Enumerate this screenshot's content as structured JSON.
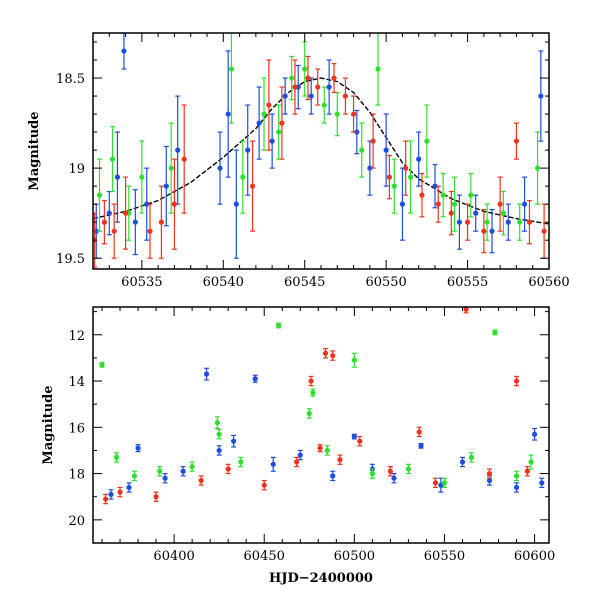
{
  "chart_data": [
    {
      "type": "scatter",
      "panel": "top",
      "title": "",
      "xlabel": "",
      "ylabel": "Magnitude",
      "xlim": [
        60532,
        60560
      ],
      "ylim": [
        19.56,
        18.25
      ],
      "y_inverted": true,
      "grid": false,
      "legend": "none",
      "xticks": [
        "60535",
        "60540",
        "60545",
        "60550",
        "60555",
        "60560"
      ],
      "yticks": [
        "18.5",
        "19",
        "19.5"
      ],
      "model_curve": {
        "color": "#000000",
        "x": [
          60532,
          60534,
          60536,
          60538,
          60540,
          60542,
          60543,
          60544,
          60545,
          60546,
          60547,
          60548,
          60549,
          60550,
          60551,
          60552,
          60554,
          60556,
          60558,
          60560
        ],
        "y": [
          19.28,
          19.24,
          19.18,
          19.08,
          18.94,
          18.78,
          18.67,
          18.58,
          18.52,
          18.5,
          18.52,
          18.58,
          18.69,
          18.83,
          18.97,
          19.06,
          19.17,
          19.24,
          19.28,
          19.31
        ]
      },
      "series": [
        {
          "color": "#1c4fe0",
          "points": [
            [
              60532.2,
              19.35,
              0.15
            ],
            [
              60533.0,
              19.25,
              0.12
            ],
            [
              60533.5,
              19.05,
              0.25
            ],
            [
              60533.9,
              18.35,
              0.1
            ],
            [
              60534.6,
              19.3,
              0.18
            ],
            [
              60535.3,
              19.2,
              0.2
            ],
            [
              60536.5,
              19.1,
              0.22
            ],
            [
              60537.2,
              18.9,
              0.3
            ],
            [
              60539.8,
              19.0,
              0.2
            ],
            [
              60540.3,
              18.7,
              0.35
            ],
            [
              60540.8,
              19.2,
              0.3
            ],
            [
              60541.5,
              18.9,
              0.25
            ],
            [
              60542.2,
              18.75,
              0.2
            ],
            [
              60543.0,
              18.85,
              0.15
            ],
            [
              60543.8,
              18.6,
              0.1
            ],
            [
              60544.6,
              18.55,
              0.12
            ],
            [
              60545.4,
              18.6,
              0.1
            ],
            [
              60546.5,
              18.55,
              0.15
            ],
            [
              60548.2,
              18.8,
              0.12
            ],
            [
              60549.0,
              19.0,
              0.15
            ],
            [
              60550.0,
              18.9,
              0.2
            ],
            [
              60551.0,
              19.2,
              0.2
            ],
            [
              60552.0,
              18.95,
              0.15
            ],
            [
              60553.0,
              19.1,
              0.12
            ],
            [
              60554.5,
              19.3,
              0.15
            ],
            [
              60555.5,
              19.25,
              0.1
            ],
            [
              60556.5,
              19.35,
              0.12
            ],
            [
              60557.5,
              19.3,
              0.1
            ],
            [
              60558.5,
              19.2,
              0.15
            ],
            [
              60559.5,
              18.6,
              0.25
            ]
          ]
        },
        {
          "color": "#2ee02e",
          "points": [
            [
              60532.4,
              19.15,
              0.2
            ],
            [
              60533.2,
              18.95,
              0.18
            ],
            [
              60534.2,
              19.25,
              0.15
            ],
            [
              60535.0,
              19.05,
              0.2
            ],
            [
              60536.8,
              19.0,
              0.25
            ],
            [
              60540.5,
              18.45,
              0.3
            ],
            [
              60541.2,
              19.05,
              0.2
            ],
            [
              60542.5,
              18.7,
              0.2
            ],
            [
              60543.4,
              18.8,
              0.15
            ],
            [
              60544.2,
              18.5,
              0.12
            ],
            [
              60545.0,
              18.45,
              0.15
            ],
            [
              60546.2,
              18.65,
              0.1
            ],
            [
              60547.0,
              18.7,
              0.12
            ],
            [
              60548.5,
              18.9,
              0.15
            ],
            [
              60549.5,
              18.45,
              0.2
            ],
            [
              60550.5,
              19.1,
              0.15
            ],
            [
              60551.5,
              19.05,
              0.2
            ],
            [
              60552.5,
              18.85,
              0.2
            ],
            [
              60553.5,
              19.15,
              0.12
            ],
            [
              60554.2,
              19.2,
              0.15
            ],
            [
              60555.2,
              19.15,
              0.12
            ],
            [
              60556.2,
              19.3,
              0.1
            ],
            [
              60557.2,
              19.25,
              0.12
            ],
            [
              60558.2,
              19.3,
              0.1
            ],
            [
              60559.3,
              19.0,
              0.2
            ]
          ]
        },
        {
          "color": "#f0331c",
          "points": [
            [
              60532.1,
              19.4,
              0.15
            ],
            [
              60532.7,
              19.3,
              0.12
            ],
            [
              60533.3,
              19.35,
              0.15
            ],
            [
              60534.0,
              19.25,
              0.2
            ],
            [
              60535.5,
              19.35,
              0.15
            ],
            [
              60536.2,
              19.3,
              0.2
            ],
            [
              60537.0,
              19.2,
              0.25
            ],
            [
              60537.6,
              18.95,
              0.3
            ],
            [
              60541.8,
              19.1,
              0.25
            ],
            [
              60542.8,
              18.65,
              0.25
            ],
            [
              60543.6,
              18.75,
              0.2
            ],
            [
              60544.4,
              18.55,
              0.15
            ],
            [
              60545.2,
              18.5,
              0.12
            ],
            [
              60545.8,
              18.55,
              0.1
            ],
            [
              60546.8,
              18.5,
              0.08
            ],
            [
              60547.5,
              18.6,
              0.1
            ],
            [
              60548.0,
              18.7,
              0.1
            ],
            [
              60549.2,
              18.85,
              0.15
            ],
            [
              60550.2,
              19.05,
              0.12
            ],
            [
              60551.2,
              19.0,
              0.15
            ],
            [
              60552.2,
              19.15,
              0.12
            ],
            [
              60553.2,
              19.2,
              0.1
            ],
            [
              60554.0,
              19.25,
              0.12
            ],
            [
              60555.0,
              19.3,
              0.1
            ],
            [
              60556.0,
              19.35,
              0.12
            ],
            [
              60557.0,
              19.2,
              0.15
            ],
            [
              60558.0,
              18.85,
              0.1
            ],
            [
              60558.8,
              19.3,
              0.12
            ],
            [
              60559.7,
              19.35,
              0.15
            ]
          ]
        }
      ]
    },
    {
      "type": "scatter",
      "panel": "bottom",
      "title": "",
      "xlabel": "HJD−2400000",
      "ylabel": "Magnitude",
      "xlim": [
        60355,
        60608
      ],
      "ylim": [
        21.0,
        10.8
      ],
      "y_inverted": true,
      "grid": false,
      "legend": "none",
      "xticks": [
        "60400",
        "60450",
        "60500",
        "60550",
        "60600"
      ],
      "yticks": [
        "12",
        "14",
        "16",
        "18",
        "20"
      ],
      "series": [
        {
          "color": "#1c4fe0",
          "points": [
            [
              60365,
              18.9,
              0.2
            ],
            [
              60375,
              18.6,
              0.2
            ],
            [
              60380,
              16.9,
              0.15
            ],
            [
              60395,
              18.2,
              0.2
            ],
            [
              60405,
              17.9,
              0.2
            ],
            [
              60418,
              13.7,
              0.25
            ],
            [
              60425,
              17.0,
              0.2
            ],
            [
              60433,
              16.6,
              0.25
            ],
            [
              60445,
              13.9,
              0.15
            ],
            [
              60455,
              17.6,
              0.3
            ],
            [
              60470,
              17.2,
              0.2
            ],
            [
              60488,
              18.1,
              0.2
            ],
            [
              60500,
              16.4,
              0.1
            ],
            [
              60510,
              17.8,
              0.2
            ],
            [
              60522,
              18.2,
              0.2
            ],
            [
              60537,
              16.8,
              0.1
            ],
            [
              60548,
              18.5,
              0.3
            ],
            [
              60560,
              17.5,
              0.2
            ],
            [
              60575,
              18.3,
              0.2
            ],
            [
              60590,
              18.6,
              0.2
            ],
            [
              60600,
              16.3,
              0.25
            ],
            [
              60604,
              18.4,
              0.2
            ]
          ]
        },
        {
          "color": "#2ee02e",
          "points": [
            [
              60360,
              13.3,
              0.1
            ],
            [
              60368,
              17.3,
              0.2
            ],
            [
              60378,
              18.1,
              0.2
            ],
            [
              60392,
              17.9,
              0.2
            ],
            [
              60410,
              17.7,
              0.2
            ],
            [
              60424,
              15.8,
              0.25
            ],
            [
              60425,
              16.3,
              0.2
            ],
            [
              60437,
              17.5,
              0.2
            ],
            [
              60458,
              11.6,
              0.1
            ],
            [
              60475,
              15.4,
              0.2
            ],
            [
              60477,
              14.5,
              0.15
            ],
            [
              60485,
              17.0,
              0.2
            ],
            [
              60500,
              13.1,
              0.3
            ],
            [
              60510,
              18.0,
              0.2
            ],
            [
              60530,
              17.8,
              0.2
            ],
            [
              60550,
              18.4,
              0.2
            ],
            [
              60565,
              17.3,
              0.2
            ],
            [
              60578,
              11.9,
              0.1
            ],
            [
              60590,
              18.1,
              0.2
            ],
            [
              60598,
              17.5,
              0.3
            ]
          ]
        },
        {
          "color": "#f0331c",
          "points": [
            [
              60362,
              19.1,
              0.2
            ],
            [
              60370,
              18.8,
              0.2
            ],
            [
              60390,
              19.0,
              0.2
            ],
            [
              60415,
              18.3,
              0.2
            ],
            [
              60430,
              17.8,
              0.2
            ],
            [
              60450,
              18.5,
              0.2
            ],
            [
              60468,
              17.5,
              0.2
            ],
            [
              60476,
              14.0,
              0.2
            ],
            [
              60481,
              16.9,
              0.15
            ],
            [
              60484,
              12.8,
              0.2
            ],
            [
              60488,
              12.9,
              0.2
            ],
            [
              60492,
              17.4,
              0.2
            ],
            [
              60503,
              16.6,
              0.2
            ],
            [
              60520,
              17.9,
              0.2
            ],
            [
              60536,
              16.2,
              0.2
            ],
            [
              60545,
              18.4,
              0.2
            ],
            [
              60562,
              10.9,
              0.15
            ],
            [
              60575,
              18.0,
              0.2
            ],
            [
              60590,
              14.0,
              0.2
            ],
            [
              60596,
              17.9,
              0.2
            ]
          ]
        }
      ]
    }
  ]
}
